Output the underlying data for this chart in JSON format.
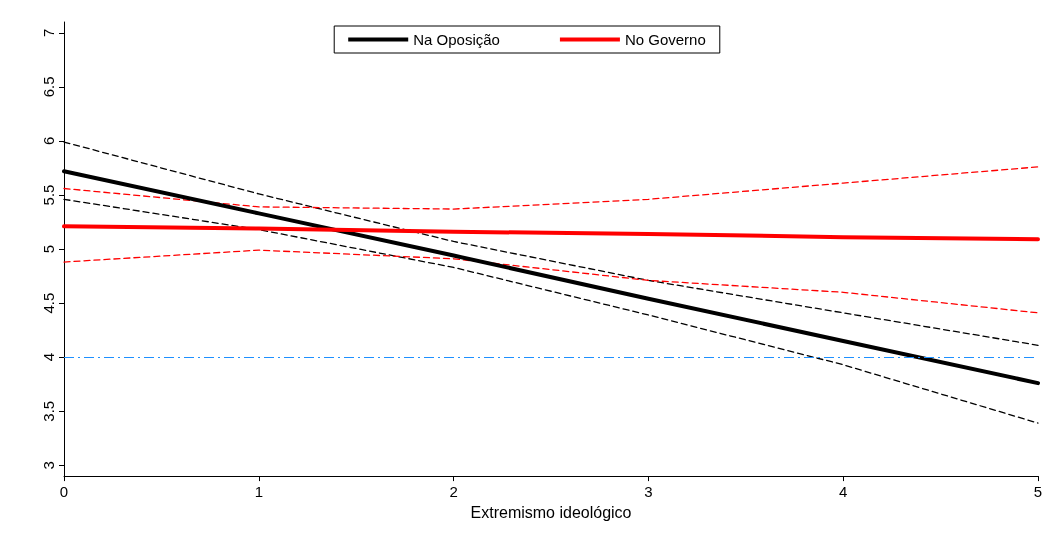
{
  "chart_data": {
    "type": "line",
    "xlabel": "Extremismo ideológico",
    "x": [
      0,
      1,
      2,
      3,
      4,
      5
    ],
    "series": [
      {
        "name": "Na Oposição",
        "color": "#000000",
        "values": [
          5.72,
          5.33,
          4.94,
          4.54,
          4.15,
          3.76
        ],
        "line_style": "solid"
      },
      {
        "name": "No Governo",
        "color": "#ff0000",
        "values": [
          5.21,
          5.19,
          5.16,
          5.14,
          5.11,
          5.09
        ],
        "line_style": "solid"
      },
      {
        "color": "#000000",
        "values": [
          5.99,
          5.51,
          5.07,
          4.71,
          4.41,
          4.11
        ],
        "line_style": "dashed"
      },
      {
        "color": "#000000",
        "values": [
          5.46,
          5.18,
          4.83,
          4.39,
          3.93,
          3.39
        ],
        "line_style": "dashed"
      },
      {
        "color": "#ff0000",
        "values": [
          5.56,
          5.39,
          5.37,
          5.46,
          5.61,
          5.76
        ],
        "line_style": "dashed"
      },
      {
        "color": "#ff0000",
        "values": [
          4.88,
          4.99,
          4.91,
          4.71,
          4.6,
          4.41
        ],
        "line_style": "dashed"
      }
    ],
    "xlim": [
      0,
      5
    ],
    "xticks": [
      0,
      1,
      2,
      3,
      4,
      5
    ],
    "ylim": [
      2.9,
      7.1
    ],
    "yticks": [
      3,
      3.5,
      4,
      4.5,
      5,
      5.5,
      6,
      6.5,
      7
    ],
    "ref_lines": [
      {
        "axis": "y",
        "value": 4,
        "color": "#1e90ff",
        "line_style": "dashed"
      }
    ],
    "grid": false,
    "legend": "top",
    "marker": "none"
  }
}
